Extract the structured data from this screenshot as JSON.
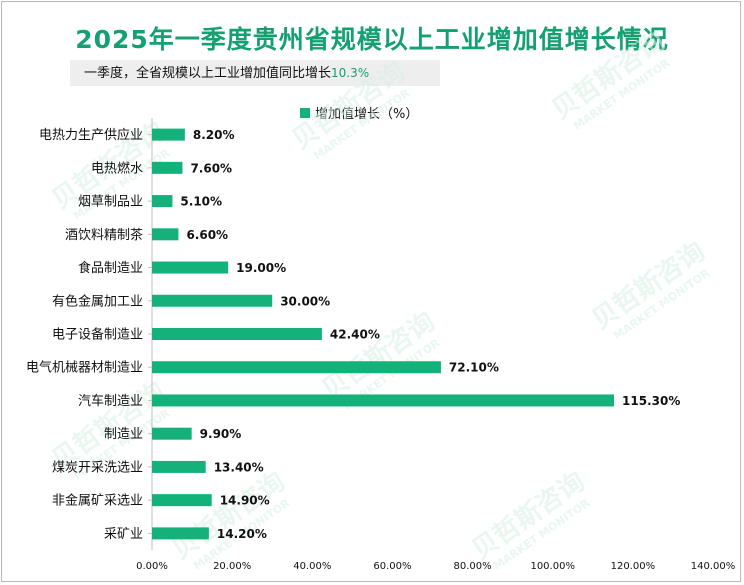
{
  "title": "2025年一季度贵州省规模以上工业增加值增长情况",
  "subtitle": {
    "text": "一季度，全省规模以上工业增加值同比增长",
    "value": "10.3%"
  },
  "watermark": {
    "text": "贝哲斯咨询",
    "subtext": "MARKET MONITOR"
  },
  "chart_data": {
    "type": "bar",
    "orientation": "horizontal",
    "categories": [
      "电热力生产供应业",
      "电热燃水",
      "烟草制品业",
      "酒饮料精制茶",
      "食品制造业",
      "有色金属加工业",
      "电子设备制造业",
      "电气机械器材制造业",
      "汽车制造业",
      "制造业",
      "煤炭开采洗选业",
      "非金属矿采选业",
      "采矿业"
    ],
    "series": [
      {
        "name": "增加值增长（%）",
        "values": [
          8.2,
          7.6,
          5.1,
          6.6,
          19.0,
          30.0,
          42.4,
          72.1,
          115.3,
          9.9,
          13.4,
          14.9,
          14.2
        ],
        "labels": [
          "8.20%",
          "7.60%",
          "5.10%",
          "6.60%",
          "19.00%",
          "30.00%",
          "42.40%",
          "72.10%",
          "115.30%",
          "9.90%",
          "13.40%",
          "14.90%",
          "14.20%"
        ]
      }
    ],
    "xlim": [
      0,
      140
    ],
    "xticks": [
      "0.00%",
      "20.00%",
      "40.00%",
      "60.00%",
      "80.00%",
      "100.00%",
      "120.00%",
      "140.00%"
    ],
    "legend_position": "top",
    "grid": false,
    "bar_color": "#14b27a"
  }
}
